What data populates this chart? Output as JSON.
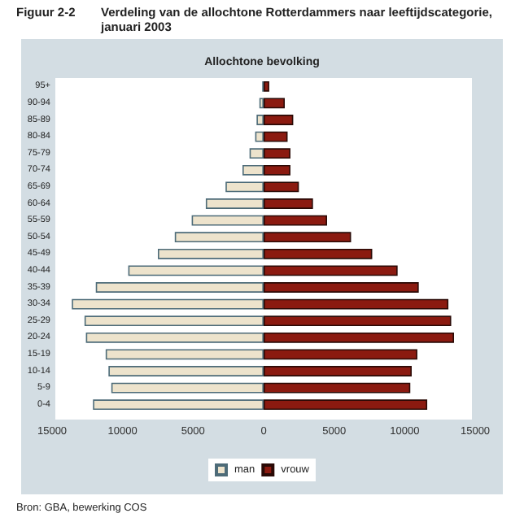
{
  "chart_data": {
    "type": "bar",
    "orientation": "horizontal",
    "title": "Verdeling van de allochtone Rotterdammers naar leeftijdscategorie, januari 2003",
    "subtitle": "Allochtone bevolking",
    "annotations": [
      "Figuur 2-2",
      "Bron: GBA, bewerking COS"
    ],
    "categories": [
      "95+",
      "90-94",
      "85-89",
      "80-84",
      "75-79",
      "70-74",
      "65-69",
      "60-64",
      "55-59",
      "50-54",
      "45-49",
      "40-44",
      "35-39",
      "30-34",
      "25-29",
      "20-24",
      "15-19",
      "10-14",
      "5-9",
      "0-4"
    ],
    "series": [
      {
        "name": "man",
        "color": "#ede3cc",
        "values": [
          -100,
          -300,
          -500,
          -600,
          -1000,
          -1500,
          -2700,
          -4100,
          -5100,
          -6300,
          -7500,
          -9600,
          -11900,
          -13600,
          -12700,
          -12600,
          -11200,
          -11000,
          -10800,
          -12100
        ]
      },
      {
        "name": "vrouw",
        "color": "#8b1a10",
        "values": [
          400,
          1500,
          2100,
          1700,
          1900,
          1900,
          2500,
          3500,
          4500,
          6200,
          7700,
          9500,
          11000,
          13100,
          13300,
          13500,
          10900,
          10500,
          10400,
          11600
        ]
      }
    ],
    "xlim": [
      -15000,
      15000
    ],
    "xticks": [
      {
        "value": -15000,
        "label": "15000"
      },
      {
        "value": -10000,
        "label": "10000"
      },
      {
        "value": -5000,
        "label": "5000"
      },
      0,
      5000,
      10000,
      15000
    ],
    "stacked": true,
    "legend": "bottom",
    "grid": false
  }
}
